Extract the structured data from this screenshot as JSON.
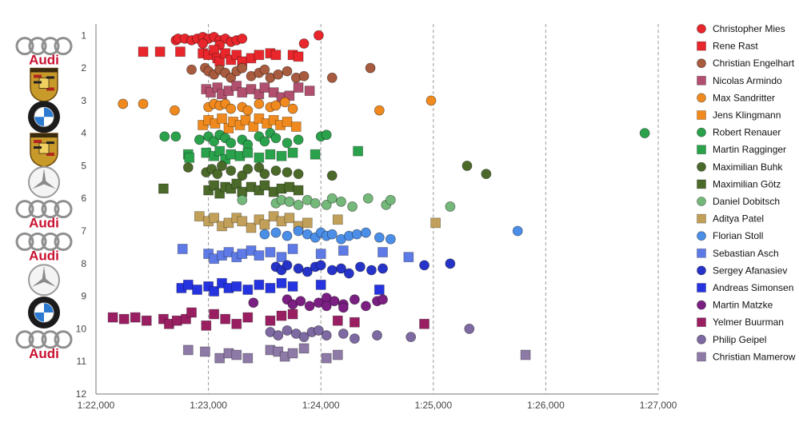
{
  "chart_data": {
    "type": "scatter",
    "title": "",
    "xlabel": "",
    "ylabel": "",
    "xlim": [
      82,
      87
    ],
    "ylim": [
      12,
      0.65
    ],
    "x_ticks": [
      {
        "value": 82,
        "label": "1:22,000"
      },
      {
        "value": 83,
        "label": "1:23,000"
      },
      {
        "value": 84,
        "label": "1:24,000"
      },
      {
        "value": 85,
        "label": "1:25,000"
      },
      {
        "value": 86,
        "label": "1:26,000"
      },
      {
        "value": 87,
        "label": "1:27,000"
      }
    ],
    "y_ticks": [
      "1",
      "2",
      "3",
      "4",
      "5",
      "6",
      "7",
      "8",
      "9",
      "10",
      "11",
      "12"
    ],
    "grid": "vertical dashed",
    "legend_position": "right",
    "row_logos": [
      {
        "row": 1.5,
        "brand": "audi",
        "label": "Audi"
      },
      {
        "row": 2.5,
        "brand": "porsche",
        "label": ""
      },
      {
        "row": 3.5,
        "brand": "bmw",
        "label": ""
      },
      {
        "row": 4.5,
        "brand": "porsche",
        "label": ""
      },
      {
        "row": 5.5,
        "brand": "mercedes",
        "label": ""
      },
      {
        "row": 6.5,
        "brand": "audi",
        "label": "Audi"
      },
      {
        "row": 7.5,
        "brand": "audi",
        "label": "Audi"
      },
      {
        "row": 8.5,
        "brand": "mercedes",
        "label": ""
      },
      {
        "row": 9.5,
        "brand": "bmw",
        "label": ""
      },
      {
        "row": 10.5,
        "brand": "audi",
        "label": "Audi"
      }
    ],
    "series": [
      {
        "name": "Christopher Mies",
        "marker": "circle",
        "color": "#e8262b",
        "x": [
          82.71,
          82.73,
          82.79,
          82.85,
          82.9,
          82.95,
          83.0,
          83.05,
          83.1,
          83.15,
          83.2,
          83.25,
          83.3,
          83.1,
          82.95,
          83.85,
          83.98
        ],
        "y": [
          1.15,
          1.1,
          1.1,
          1.15,
          1.1,
          1.05,
          1.1,
          1.05,
          1.15,
          1.1,
          1.2,
          1.15,
          1.1,
          1.3,
          1.25,
          1.25,
          1.0
        ]
      },
      {
        "name": "Rene Rast",
        "marker": "square",
        "color": "#e8262b",
        "x": [
          82.42,
          82.57,
          82.75,
          82.95,
          83.0,
          83.05,
          83.08,
          83.1,
          83.15,
          83.2,
          83.25,
          83.3,
          83.38,
          83.45,
          83.55,
          83.6,
          83.75,
          83.8
        ],
        "y": [
          1.5,
          1.5,
          1.5,
          1.55,
          1.6,
          1.45,
          1.7,
          1.8,
          1.55,
          1.75,
          1.6,
          1.8,
          1.7,
          1.6,
          1.55,
          1.6,
          1.6,
          1.65
        ]
      },
      {
        "name": "Christian Engelhart",
        "marker": "circle",
        "color": "#a85b3e",
        "x": [
          82.85,
          82.97,
          83.0,
          83.05,
          83.1,
          83.15,
          83.2,
          83.25,
          83.3,
          83.38,
          83.45,
          83.5,
          83.55,
          83.62,
          83.7,
          83.78,
          83.85,
          84.1,
          84.44
        ],
        "y": [
          2.05,
          2.0,
          2.1,
          2.2,
          2.05,
          2.15,
          2.3,
          2.1,
          2.0,
          2.25,
          2.15,
          2.05,
          2.3,
          2.2,
          2.1,
          2.3,
          2.25,
          2.3,
          2.0
        ]
      },
      {
        "name": "Nicolas Armindo",
        "marker": "square",
        "color": "#b04f6e",
        "x": [
          82.98,
          83.02,
          83.08,
          83.12,
          83.18,
          83.25,
          83.3,
          83.38,
          83.45,
          83.5,
          83.58,
          83.65,
          83.72,
          83.8,
          83.9
        ],
        "y": [
          2.65,
          2.75,
          2.6,
          2.8,
          2.7,
          2.55,
          2.75,
          2.65,
          2.8,
          2.6,
          2.75,
          2.9,
          2.85,
          2.6,
          2.7
        ]
      },
      {
        "name": "Max Sandritter",
        "marker": "circle",
        "color": "#f08a1e",
        "x": [
          82.24,
          82.42,
          82.7,
          83.0,
          83.05,
          83.1,
          83.15,
          83.2,
          83.3,
          83.35,
          83.45,
          83.55,
          83.6,
          83.68,
          83.75,
          84.52,
          84.98
        ],
        "y": [
          3.1,
          3.1,
          3.3,
          3.2,
          3.1,
          3.15,
          3.1,
          3.25,
          3.2,
          3.3,
          3.1,
          3.2,
          3.15,
          3.05,
          3.25,
          3.3,
          3.0
        ]
      },
      {
        "name": "Jens Klingmann",
        "marker": "square",
        "color": "#f08a1e",
        "x": [
          82.95,
          83.0,
          83.06,
          83.12,
          83.18,
          83.22,
          83.28,
          83.33,
          83.4,
          83.45,
          83.52,
          83.58,
          83.64,
          83.7,
          83.78
        ],
        "y": [
          3.75,
          3.6,
          3.7,
          3.55,
          3.85,
          3.65,
          3.75,
          3.6,
          3.8,
          3.55,
          3.7,
          3.6,
          3.75,
          3.65,
          3.8
        ]
      },
      {
        "name": "Robert Renauer",
        "marker": "circle",
        "color": "#2aa24b",
        "x": [
          82.61,
          82.71,
          82.92,
          83.0,
          83.05,
          83.1,
          83.15,
          83.2,
          83.3,
          83.35,
          83.45,
          83.5,
          83.55,
          83.6,
          83.7,
          83.8,
          84.0,
          84.05,
          86.88
        ],
        "y": [
          4.1,
          4.1,
          4.2,
          4.1,
          4.25,
          4.05,
          4.15,
          4.3,
          4.2,
          4.35,
          4.1,
          4.25,
          4.0,
          4.15,
          4.3,
          4.2,
          4.1,
          4.05,
          4.0
        ]
      },
      {
        "name": "Martin Ragginger",
        "marker": "square",
        "color": "#2aa24b",
        "x": [
          82.82,
          82.83,
          82.98,
          83.05,
          83.1,
          83.15,
          83.2,
          83.28,
          83.35,
          83.45,
          83.55,
          83.65,
          83.75,
          83.95,
          84.33
        ],
        "y": [
          4.65,
          4.75,
          4.6,
          4.7,
          4.55,
          4.8,
          4.65,
          4.7,
          4.6,
          4.75,
          4.65,
          4.7,
          4.6,
          4.65,
          4.55
        ]
      },
      {
        "name": "Maximilian Buhk",
        "marker": "circle",
        "color": "#4b6a2a",
        "x": [
          82.82,
          82.98,
          83.03,
          83.08,
          83.12,
          83.2,
          83.3,
          83.35,
          83.45,
          83.5,
          83.6,
          83.7,
          83.8,
          84.1,
          85.3,
          85.47
        ],
        "y": [
          5.05,
          5.2,
          5.1,
          5.25,
          5.0,
          5.15,
          5.3,
          5.1,
          5.05,
          5.25,
          5.15,
          5.2,
          5.25,
          5.3,
          5.0,
          5.25
        ]
      },
      {
        "name": "Maximilian Götz",
        "marker": "square",
        "color": "#4b6a2a",
        "x": [
          82.6,
          83.0,
          83.05,
          83.1,
          83.15,
          83.2,
          83.25,
          83.3,
          83.38,
          83.45,
          83.5,
          83.58,
          83.65,
          83.72,
          83.8
        ],
        "y": [
          5.7,
          5.75,
          5.6,
          5.85,
          5.65,
          5.7,
          5.55,
          5.8,
          5.65,
          5.75,
          5.6,
          5.8,
          5.7,
          5.65,
          5.75
        ]
      },
      {
        "name": "Daniel Dobitsch",
        "marker": "circle",
        "color": "#74b87a",
        "x": [
          83.3,
          83.6,
          83.65,
          83.72,
          83.8,
          83.88,
          83.95,
          84.05,
          84.1,
          84.18,
          84.28,
          84.42,
          84.58,
          84.62,
          85.15
        ],
        "y": [
          6.05,
          6.15,
          6.05,
          6.1,
          6.2,
          6.05,
          6.15,
          6.2,
          6.0,
          6.1,
          6.25,
          6.0,
          6.2,
          6.05,
          6.25
        ]
      },
      {
        "name": "Aditya Patel",
        "marker": "square",
        "color": "#c2a05a",
        "x": [
          82.92,
          83.0,
          83.05,
          83.12,
          83.18,
          83.25,
          83.3,
          83.38,
          83.45,
          83.5,
          83.58,
          83.65,
          83.72,
          83.8,
          83.88,
          84.15,
          85.02
        ],
        "y": [
          6.55,
          6.7,
          6.6,
          6.85,
          6.75,
          6.6,
          6.7,
          6.9,
          6.65,
          6.8,
          6.55,
          6.7,
          6.6,
          6.85,
          6.75,
          6.65,
          6.75
        ]
      },
      {
        "name": "Florian Stoll",
        "marker": "circle",
        "color": "#4b8ee8",
        "x": [
          83.5,
          83.6,
          83.7,
          83.8,
          83.88,
          83.95,
          84.0,
          84.05,
          84.1,
          84.18,
          84.25,
          84.32,
          84.4,
          84.52,
          84.62,
          85.75
        ],
        "y": [
          7.1,
          7.05,
          7.15,
          7.0,
          7.1,
          7.2,
          7.05,
          7.15,
          7.1,
          7.25,
          7.15,
          7.1,
          7.05,
          7.2,
          7.25,
          7.0
        ]
      },
      {
        "name": "Sebastian Asch",
        "marker": "square",
        "color": "#5e7ae6",
        "x": [
          82.77,
          83.0,
          83.05,
          83.12,
          83.18,
          83.25,
          83.3,
          83.38,
          83.45,
          83.55,
          83.65,
          83.75,
          84.0,
          84.2,
          84.55,
          84.78
        ],
        "y": [
          7.55,
          7.7,
          7.85,
          7.75,
          7.65,
          7.8,
          7.7,
          7.6,
          7.75,
          7.65,
          7.8,
          7.55,
          7.7,
          7.6,
          7.65,
          7.8
        ]
      },
      {
        "name": "Sergey Afanasiev",
        "marker": "circle",
        "color": "#2533c8",
        "x": [
          83.6,
          83.65,
          83.7,
          83.8,
          83.88,
          83.95,
          84.0,
          84.1,
          84.18,
          84.25,
          84.35,
          84.45,
          84.55,
          84.92,
          85.15
        ],
        "y": [
          8.1,
          8.2,
          8.05,
          8.15,
          8.25,
          8.1,
          8.05,
          8.2,
          8.15,
          8.3,
          8.1,
          8.2,
          8.15,
          8.05,
          8.0
        ]
      },
      {
        "name": "Andreas Simonsen",
        "marker": "square",
        "color": "#2533e0",
        "x": [
          82.76,
          82.82,
          82.9,
          83.0,
          83.05,
          83.12,
          83.18,
          83.25,
          83.35,
          83.45,
          83.55,
          83.65,
          83.75,
          84.0,
          84.52
        ],
        "y": [
          8.75,
          8.65,
          8.8,
          8.7,
          8.85,
          8.6,
          8.75,
          8.7,
          8.8,
          8.65,
          8.75,
          8.6,
          8.7,
          8.65,
          8.8
        ]
      },
      {
        "name": "Martin Matzke",
        "marker": "circle",
        "color": "#7b1f83",
        "x": [
          83.4,
          83.7,
          83.75,
          83.82,
          83.9,
          83.98,
          84.05,
          84.12,
          84.2,
          84.3,
          84.4,
          84.5,
          84.55,
          84.2,
          84.05
        ],
        "y": [
          9.2,
          9.1,
          9.25,
          9.15,
          9.3,
          9.2,
          9.05,
          9.15,
          9.25,
          9.1,
          9.3,
          9.15,
          9.1,
          9.35,
          9.3
        ]
      },
      {
        "name": "Yelmer Buurman",
        "marker": "square",
        "color": "#9a1f62",
        "x": [
          82.15,
          82.25,
          82.35,
          82.45,
          82.6,
          82.65,
          82.72,
          82.8,
          82.85,
          82.98,
          83.05,
          83.15,
          83.25,
          83.35,
          83.55,
          83.65,
          83.75,
          84.15,
          84.3,
          84.92
        ],
        "y": [
          9.65,
          9.7,
          9.65,
          9.75,
          9.7,
          9.85,
          9.75,
          9.7,
          9.5,
          9.9,
          9.55,
          9.7,
          9.85,
          9.65,
          9.75,
          9.6,
          9.55,
          9.75,
          9.8,
          9.85
        ]
      },
      {
        "name": "Philip Geipel",
        "marker": "circle",
        "color": "#7e6aa2",
        "x": [
          83.55,
          83.62,
          83.7,
          83.78,
          83.85,
          83.92,
          83.98,
          84.05,
          84.2,
          84.3,
          84.5,
          84.8,
          85.32
        ],
        "y": [
          10.1,
          10.2,
          10.05,
          10.15,
          10.25,
          10.1,
          10.05,
          10.2,
          10.15,
          10.3,
          10.2,
          10.25,
          10.0
        ]
      },
      {
        "name": "Christian Mamerow",
        "marker": "square",
        "color": "#8e7aa6",
        "x": [
          82.82,
          82.97,
          83.1,
          83.18,
          83.25,
          83.35,
          83.55,
          83.62,
          83.68,
          83.75,
          83.85,
          84.05,
          84.15,
          85.82
        ],
        "y": [
          10.65,
          10.7,
          10.9,
          10.75,
          10.8,
          10.9,
          10.65,
          10.7,
          10.85,
          10.75,
          10.6,
          10.9,
          10.8,
          10.8
        ]
      }
    ]
  }
}
